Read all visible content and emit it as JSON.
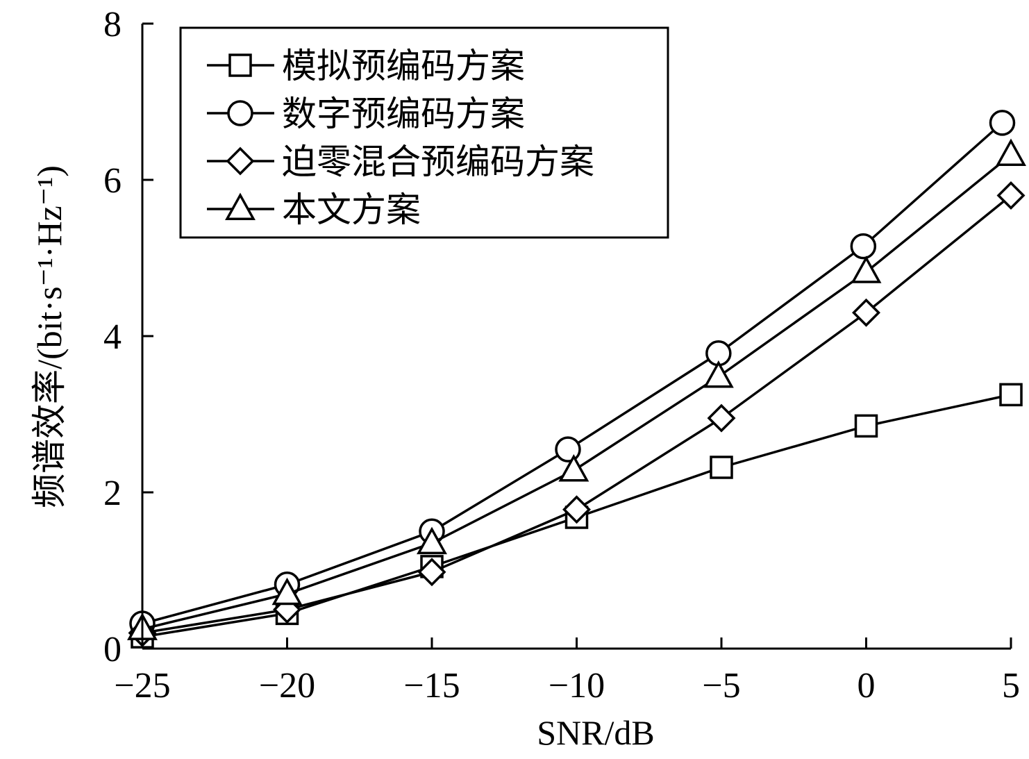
{
  "chart_data": {
    "type": "line",
    "x": [
      -25,
      -20,
      -15,
      -10,
      -5,
      0,
      5
    ],
    "xlabel": "SNR/dB",
    "ylabel": "频谱效率/(bit·s⁻¹·Hz⁻¹)",
    "xlim": [
      -25,
      5
    ],
    "ylim": [
      0,
      8
    ],
    "xticks": [
      "−25",
      "−20",
      "−15",
      "−10",
      "−5",
      "0",
      "5"
    ],
    "yticks": [
      "0",
      "2",
      "4",
      "6",
      "8"
    ],
    "grid": false,
    "legend_position": "top-left",
    "series": [
      {
        "name": "模拟预编码方案",
        "marker": "square",
        "x": [
          -25,
          -20,
          -15,
          -10,
          -5,
          0,
          5
        ],
        "values": [
          0.15,
          0.45,
          1.05,
          1.68,
          2.32,
          2.85,
          3.25
        ]
      },
      {
        "name": "数字预编码方案",
        "marker": "circle",
        "x": [
          -25,
          -20,
          -15,
          -10.3,
          -5.1,
          -0.1,
          4.7
        ],
        "values": [
          0.32,
          0.82,
          1.5,
          2.55,
          3.78,
          5.15,
          6.73
        ]
      },
      {
        "name": "迫零混合预编码方案",
        "marker": "diamond",
        "x": [
          -25,
          -20,
          -15,
          -10,
          -5,
          0,
          5
        ],
        "values": [
          0.2,
          0.5,
          0.98,
          1.78,
          2.95,
          4.3,
          5.8
        ]
      },
      {
        "name": "本文方案",
        "marker": "triangle",
        "x": [
          -25,
          -20,
          -15,
          -10.1,
          -5.1,
          0,
          5
        ],
        "values": [
          0.25,
          0.7,
          1.35,
          2.28,
          3.48,
          4.82,
          6.32
        ]
      }
    ],
    "line_color": "#000000"
  }
}
